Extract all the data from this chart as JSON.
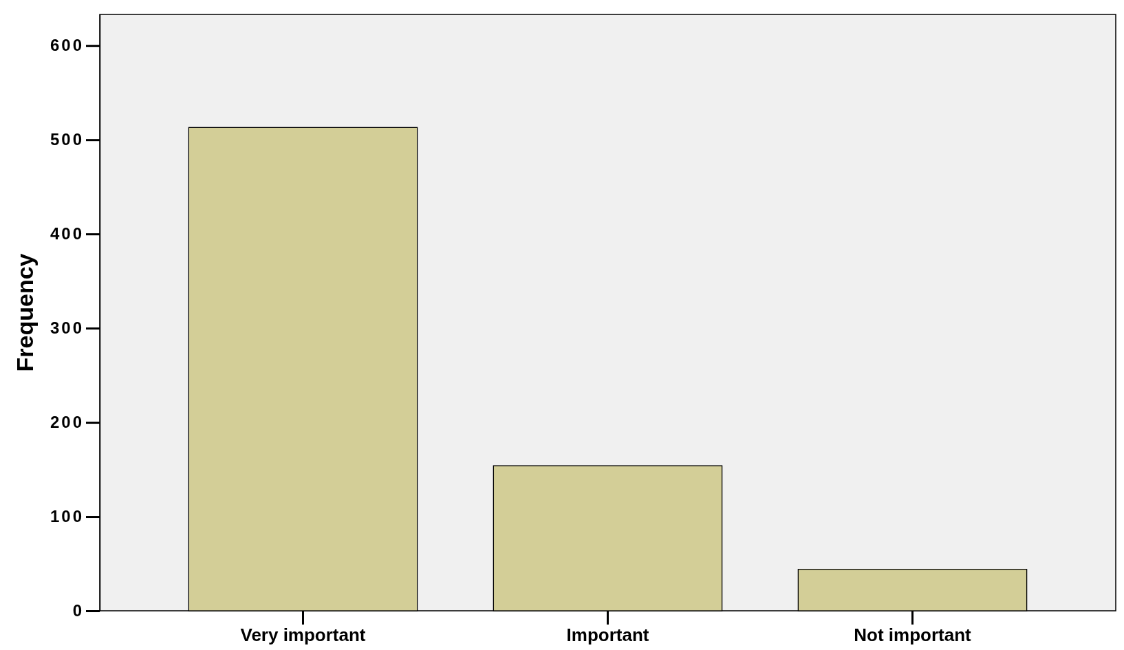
{
  "chart_data": {
    "type": "bar",
    "ylabel": "Frequency",
    "categories": [
      "Very important",
      "Important",
      "Not important"
    ],
    "values": [
      513,
      154,
      44
    ],
    "color": "#d3ce97",
    "ylim": [
      0,
      633
    ],
    "yticks": [
      0,
      100,
      200,
      300,
      400,
      500,
      600
    ]
  }
}
